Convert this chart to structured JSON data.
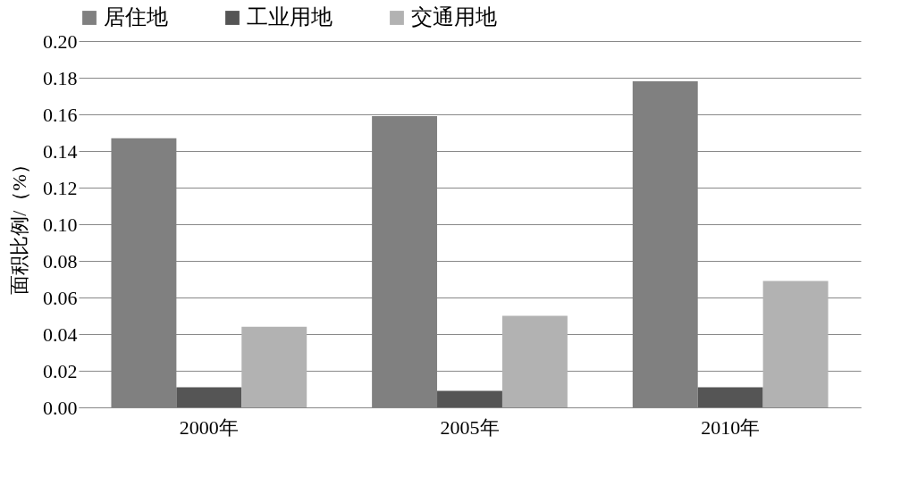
{
  "chart_data": {
    "type": "bar",
    "ylabel": "面积比例/（%）",
    "categories": [
      "2000年",
      "2005年",
      "2010年"
    ],
    "series": [
      {
        "name": "居住地",
        "color": "#808080",
        "values": [
          0.147,
          0.159,
          0.178
        ]
      },
      {
        "name": "工业用地",
        "color": "#555555",
        "values": [
          0.011,
          0.009,
          0.011
        ]
      },
      {
        "name": "交通用地",
        "color": "#b2b2b2",
        "values": [
          0.044,
          0.05,
          0.069
        ]
      }
    ],
    "ylim": [
      0,
      0.2
    ],
    "yticks": [
      {
        "value": 0,
        "label": "0.00"
      },
      0.02,
      0.04,
      0.06,
      0.08,
      {
        "value": 0.1,
        "label": "0.10"
      },
      0.12,
      0.14,
      0.16,
      0.18,
      {
        "value": 0.2,
        "label": "0.20"
      }
    ],
    "grid": "y",
    "legend": "top"
  }
}
